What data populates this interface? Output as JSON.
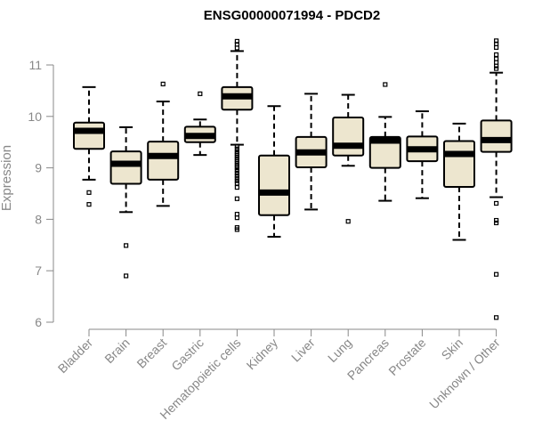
{
  "chart_data": {
    "type": "boxplot",
    "title": "ENSG00000071994 - PDCD2",
    "ylabel": "Expression",
    "xlabel": "",
    "ylim": [
      6,
      11.5
    ],
    "yticks": [
      6,
      7,
      8,
      9,
      10,
      11
    ],
    "grid": false,
    "colors": {
      "box_fill": "#ede6cf",
      "stroke": "#000000",
      "axis": "#888888"
    },
    "categories": [
      "Bladder",
      "Brain",
      "Breast",
      "Gastric",
      "Hematopoietic cells",
      "Kidney",
      "Liver",
      "Lung",
      "Pancreas",
      "Prostate",
      "Skin",
      "Unknown / Other"
    ],
    "boxes": [
      {
        "category": "Bladder",
        "whisker_low": 8.77,
        "q1": 9.37,
        "median": 9.72,
        "q3": 9.88,
        "whisker_high": 10.57,
        "outliers": [
          8.52,
          8.29
        ]
      },
      {
        "category": "Brain",
        "whisker_low": 8.14,
        "q1": 8.69,
        "median": 9.08,
        "q3": 9.32,
        "whisker_high": 9.79,
        "outliers": [
          7.49,
          6.9
        ]
      },
      {
        "category": "Breast",
        "whisker_low": 8.26,
        "q1": 8.77,
        "median": 9.23,
        "q3": 9.51,
        "whisker_high": 10.29,
        "outliers": [
          10.63
        ]
      },
      {
        "category": "Gastric",
        "whisker_low": 9.25,
        "q1": 9.5,
        "median": 9.62,
        "q3": 9.8,
        "whisker_high": 9.94,
        "outliers": [
          10.44
        ]
      },
      {
        "category": "Hematopoietic cells",
        "whisker_low": 9.45,
        "q1": 10.13,
        "median": 10.39,
        "q3": 10.57,
        "whisker_high": 11.27,
        "outliers": [
          11.46,
          11.4,
          11.33,
          9.42,
          9.37,
          9.32,
          9.28,
          9.24,
          9.2,
          9.16,
          9.12,
          9.08,
          9.04,
          9.0,
          8.95,
          8.9,
          8.85,
          8.8,
          8.75,
          8.7,
          8.62,
          8.4,
          8.1,
          8.03,
          7.84,
          7.8
        ]
      },
      {
        "category": "Kidney",
        "whisker_low": 7.66,
        "q1": 8.08,
        "median": 8.52,
        "q3": 9.24,
        "whisker_high": 10.2,
        "outliers": []
      },
      {
        "category": "Liver",
        "whisker_low": 8.19,
        "q1": 9.01,
        "median": 9.3,
        "q3": 9.6,
        "whisker_high": 10.44,
        "outliers": []
      },
      {
        "category": "Lung",
        "whisker_low": 9.04,
        "q1": 9.24,
        "median": 9.43,
        "q3": 9.98,
        "whisker_high": 10.42,
        "outliers": [
          7.96
        ]
      },
      {
        "category": "Pancreas",
        "whisker_low": 8.36,
        "q1": 9.0,
        "median": 9.53,
        "q3": 9.6,
        "whisker_high": 9.99,
        "outliers": [
          10.62
        ]
      },
      {
        "category": "Prostate",
        "whisker_low": 8.41,
        "q1": 9.13,
        "median": 9.36,
        "q3": 9.61,
        "whisker_high": 10.1,
        "outliers": []
      },
      {
        "category": "Skin",
        "whisker_low": 7.6,
        "q1": 8.63,
        "median": 9.27,
        "q3": 9.52,
        "whisker_high": 9.86,
        "outliers": []
      },
      {
        "category": "Unknown / Other",
        "whisker_low": 8.43,
        "q1": 9.31,
        "median": 9.54,
        "q3": 9.92,
        "whisker_high": 10.85,
        "outliers": [
          11.47,
          11.41,
          11.34,
          11.2,
          11.12,
          11.05,
          10.98,
          10.93,
          8.31,
          7.98,
          7.93,
          6.93,
          6.09
        ]
      }
    ]
  }
}
